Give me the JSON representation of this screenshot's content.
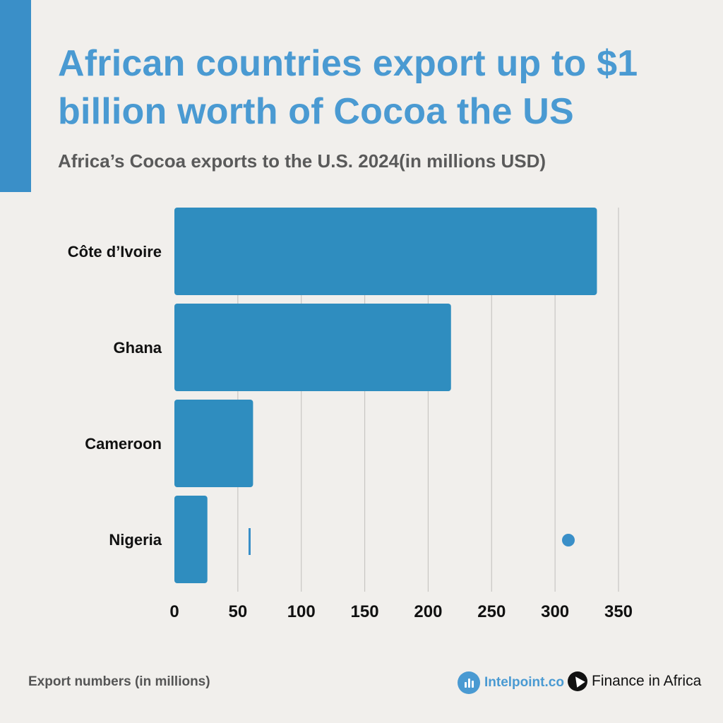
{
  "header": {
    "title": "African countries export up to $1 billion worth of Cocoa the US",
    "subtitle": "Africa’s Cocoa exports to the U.S. 2024(in millions USD)"
  },
  "colors": {
    "accent": "#3a8fc8",
    "bar": "#2f8dbf",
    "title": "#4a9ad2",
    "background": "#f1efec",
    "gridline": "#c8c6c3"
  },
  "chart_data": {
    "type": "bar",
    "orientation": "horizontal",
    "categories": [
      "Côte d’Ivoire",
      "Ghana",
      "Cameroon",
      "Nigeria"
    ],
    "values": [
      333,
      218,
      62,
      26
    ],
    "xlim": [
      0,
      350
    ],
    "xticks": [
      0,
      50,
      100,
      150,
      200,
      250,
      300,
      350
    ],
    "grid": true,
    "title": "",
    "xlabel": "",
    "ylabel": ""
  },
  "footer": {
    "note": "Export numbers (in millions)",
    "brand_intelpoint": "Intelpoint.co",
    "brand_intelpoint_icon": "bar-chart-icon",
    "brand_finance": "Finance in Africa",
    "brand_finance_icon": "africa-map-icon"
  }
}
